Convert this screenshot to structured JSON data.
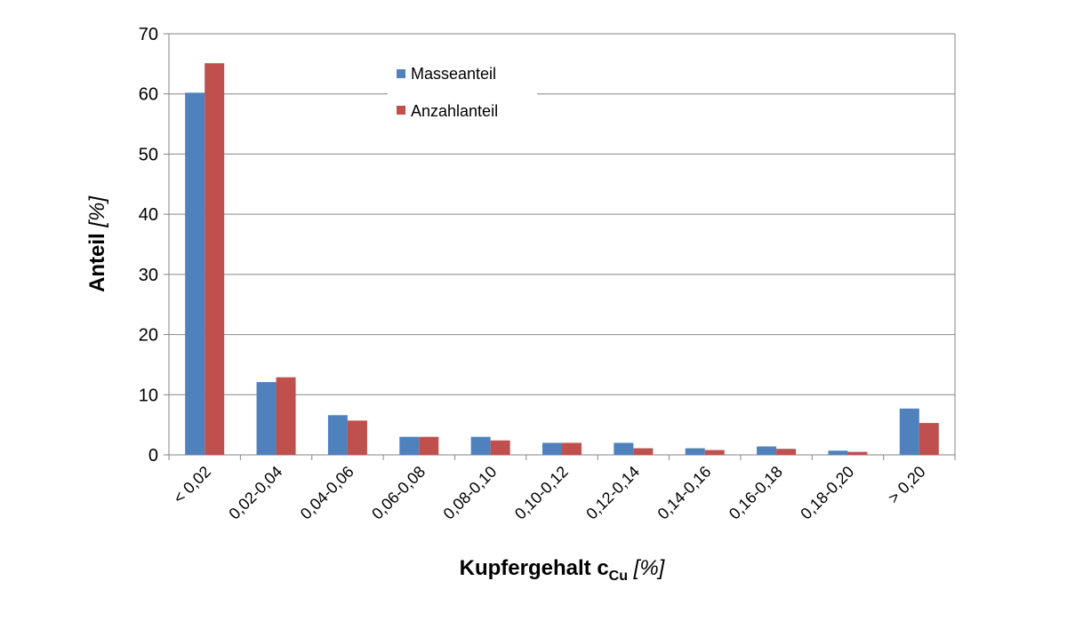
{
  "chart_data": {
    "type": "bar",
    "categories": [
      "< 0,02",
      "0,02-0,04",
      "0,04-0,06",
      "0,06-0,08",
      "0,08-0,10",
      "0,10-0,12",
      "0,12-0,14",
      "0,14-0,16",
      "0,16-0,18",
      "0,18-0,20",
      "> 0,20"
    ],
    "series": [
      {
        "name": "Masseanteil",
        "color": "#4f81bd",
        "values": [
          60.2,
          12.1,
          6.6,
          3.0,
          3.0,
          2.0,
          2.0,
          1.1,
          1.4,
          0.7,
          7.7
        ]
      },
      {
        "name": "Anzahlanteil",
        "color": "#c0504d",
        "values": [
          65.1,
          12.9,
          5.7,
          3.0,
          2.4,
          2.0,
          1.1,
          0.8,
          1.0,
          0.5,
          5.3
        ]
      }
    ],
    "ylim": [
      0,
      70
    ],
    "yticks": [
      0,
      10,
      20,
      30,
      40,
      50,
      60,
      70
    ],
    "ylabel": {
      "main": "Anteil",
      "unit": "[%]"
    },
    "xlabel": {
      "main": "Kupfergehalt c",
      "subscript": "Cu",
      "unit": "[%]"
    },
    "grid": true,
    "legend_position": "top-center"
  }
}
